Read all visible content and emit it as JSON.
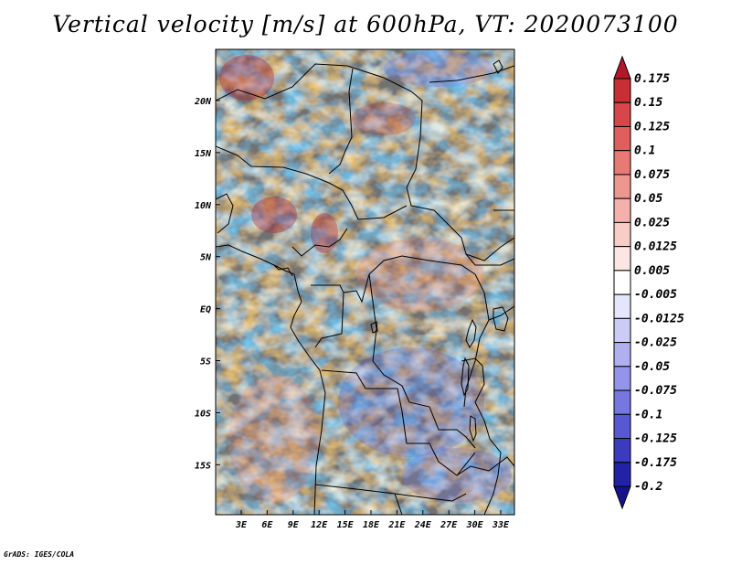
{
  "title": "Vertical velocity [m/s] at 600hPa, VT: 2020073100",
  "credit": "GrADS: IGES/COLA",
  "map": {
    "lon_ticks": [
      "3E",
      "6E",
      "9E",
      "12E",
      "15E",
      "18E",
      "21E",
      "24E",
      "27E",
      "30E",
      "33E"
    ],
    "lat_ticks": [
      "20N",
      "15N",
      "10N",
      "5N",
      "EQ",
      "5S",
      "10S",
      "15S"
    ]
  },
  "colorbar": {
    "levels": [
      "0.175",
      "0.15",
      "0.125",
      "0.1",
      "0.075",
      "0.05",
      "0.025",
      "0.0125",
      "0.005",
      "-0.005",
      "-0.0125",
      "-0.025",
      "-0.05",
      "-0.075",
      "-0.1",
      "-0.125",
      "-0.175",
      "-0.2"
    ],
    "colors": [
      "#b2182b",
      "#c52f35",
      "#d6464a",
      "#e05f5e",
      "#e87a76",
      "#ee9690",
      "#f4b1ab",
      "#f8ccc7",
      "#fce6e3",
      "#ffffff",
      "#e5e5fb",
      "#cbcbf6",
      "#b0b0f1",
      "#9494ea",
      "#7777e0",
      "#5858d2",
      "#3b3bbd",
      "#2222a6",
      "#15138a"
    ]
  }
}
